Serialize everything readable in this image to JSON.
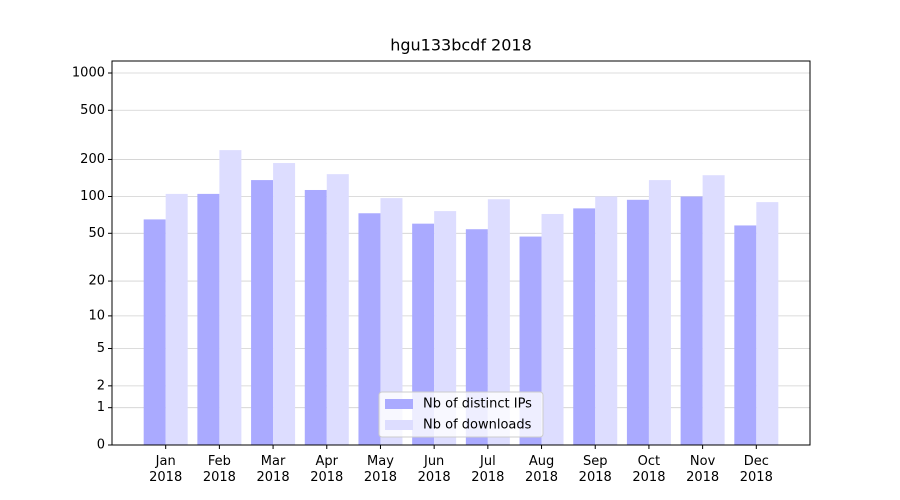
{
  "chart_data": {
    "type": "bar",
    "title": "hgu133bcdf 2018",
    "categories": [
      "Jan\n2018",
      "Feb\n2018",
      "Mar\n2018",
      "Apr\n2018",
      "May\n2018",
      "Jun\n2018",
      "Jul\n2018",
      "Aug\n2018",
      "Sep\n2018",
      "Oct\n2018",
      "Nov\n2018",
      "Dec\n2018"
    ],
    "series": [
      {
        "name": "Nb of distinct IPs",
        "color": "#aaaaff",
        "values": [
          65,
          105,
          136,
          113,
          73,
          60,
          54,
          47,
          80,
          94,
          100,
          58
        ]
      },
      {
        "name": "Nb of downloads",
        "color": "#ddddff",
        "values": [
          105,
          238,
          187,
          152,
          97,
          76,
          95,
          72,
          100,
          136,
          149,
          90
        ]
      }
    ],
    "yscale": "log1p",
    "ylim": [
      0,
      1250
    ],
    "yticks": [
      0,
      1,
      2,
      5,
      10,
      20,
      50,
      100,
      200,
      500,
      1000
    ],
    "grid": true,
    "legend": "lower center"
  }
}
